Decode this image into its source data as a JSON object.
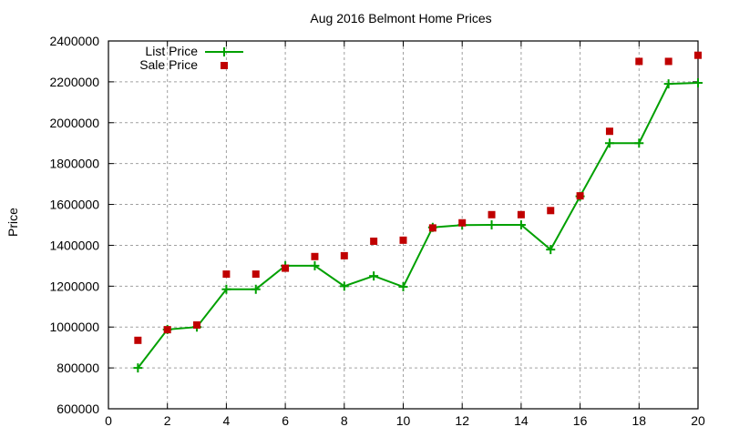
{
  "chart_data": {
    "type": "line",
    "title": "Aug 2016 Belmont Home Prices",
    "xlabel": "",
    "ylabel": "Price",
    "xlim": [
      0,
      20
    ],
    "ylim": [
      600000,
      2400000
    ],
    "xticks": [
      0,
      2,
      4,
      6,
      8,
      10,
      12,
      14,
      16,
      18,
      20
    ],
    "yticks": [
      600000,
      800000,
      1000000,
      1200000,
      1400000,
      1600000,
      1800000,
      2000000,
      2200000,
      2400000
    ],
    "grid": true,
    "legend_position": "top-left",
    "x": [
      1,
      2,
      3,
      4,
      5,
      6,
      7,
      8,
      9,
      10,
      11,
      12,
      13,
      14,
      15,
      16,
      17,
      18,
      19,
      20
    ],
    "series": [
      {
        "name": "List Price",
        "style": "line+cross",
        "color": "#00a000",
        "values": [
          800000,
          988000,
          1000000,
          1185000,
          1185000,
          1300000,
          1300000,
          1200000,
          1250000,
          1197000,
          1488000,
          1499000,
          1500000,
          1500000,
          1379000,
          1640000,
          1900000,
          1900000,
          2190000,
          2195000
        ]
      },
      {
        "name": "Sale Price",
        "style": "square-points",
        "color": "#c00000",
        "values": [
          935000,
          987000,
          1010000,
          1259000,
          1259000,
          1288000,
          1345000,
          1349000,
          1420000,
          1425000,
          1485000,
          1510000,
          1550000,
          1550000,
          1570000,
          1642000,
          1958000,
          2300000,
          2300000,
          2330000
        ]
      }
    ]
  }
}
